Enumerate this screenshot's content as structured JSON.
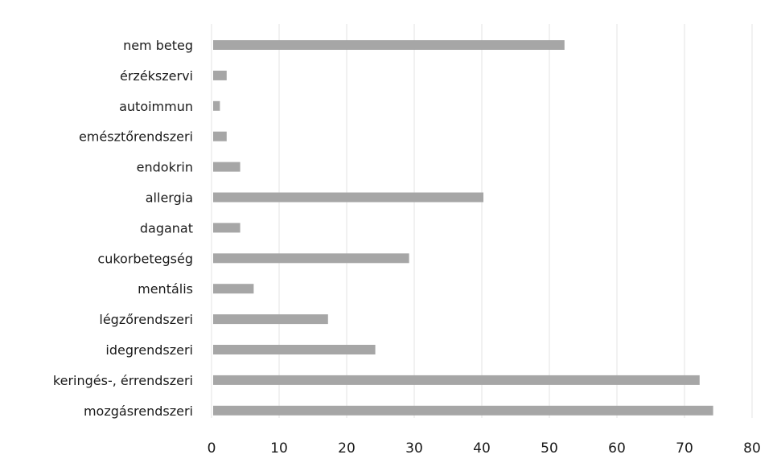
{
  "chart_data": {
    "type": "bar",
    "orientation": "horizontal",
    "title": "",
    "xlabel": "",
    "ylabel": "",
    "categories": [
      "nem beteg",
      "érzékszervi",
      "autoimmun",
      "emésztőrendszeri",
      "endokrin",
      "allergia",
      "daganat",
      "cukorbetegség",
      "mentális",
      "légzőrendszeri",
      "idegrendszeri",
      "keringés-, érrendszeri",
      "mozgásrendszeri"
    ],
    "values": [
      52,
      2,
      1,
      2,
      4,
      40,
      4,
      29,
      6,
      17,
      24,
      72,
      74
    ],
    "xlim": [
      0,
      80
    ],
    "xticks": [
      "0",
      "10",
      "20",
      "30",
      "40",
      "50",
      "60",
      "70",
      "80"
    ],
    "grid": true,
    "legend": "none",
    "bar_color": "#a6a6a6",
    "grid_color": "#e3e3e3"
  }
}
